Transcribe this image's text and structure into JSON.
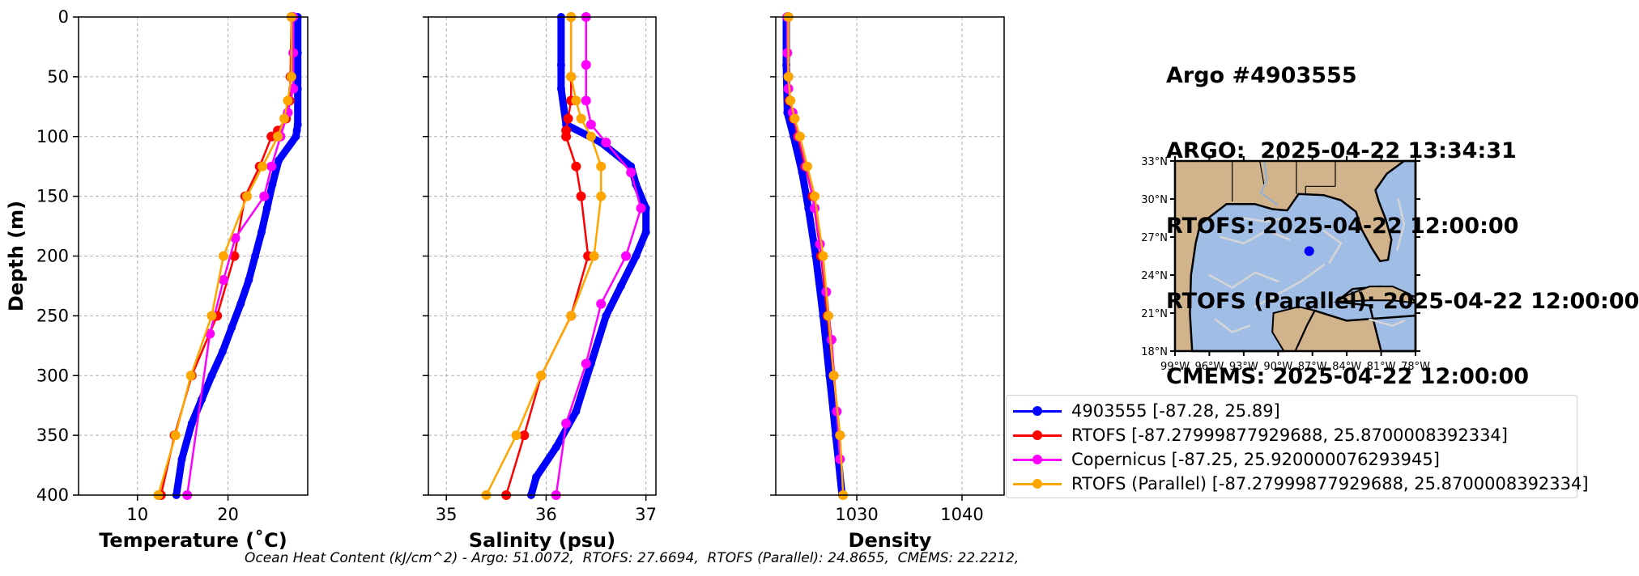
{
  "title": {
    "line1": "Argo #4903555",
    "line2": "ARGO:  2025-04-22 13:34:31",
    "line3": "RTOFS: 2025-04-22 12:00:00",
    "line4": "RTOFS (Parallel): 2025-04-22 12:00:00",
    "line5": "CMEMS: 2025-04-22 12:00:00"
  },
  "footer": "Ocean Heat Content (kJ/cm^2) - Argo: 51.0072,  RTOFS: 27.6694,  RTOFS (Parallel): 24.8655,  CMEMS: 22.2212,",
  "colors": {
    "argo": "#0000ff",
    "rtofs": "#ff0000",
    "copernicus": "#ff00ff",
    "rtofs_parallel": "#ffa500"
  },
  "legend": [
    {
      "label": "4903555 [-87.28, 25.89]",
      "color": "#0000ff"
    },
    {
      "label": "RTOFS [-87.27999877929688, 25.8700008392334]",
      "color": "#ff0000"
    },
    {
      "label": "Copernicus [-87.25, 25.920000076293945]",
      "color": "#ff00ff"
    },
    {
      "label": "RTOFS (Parallel) [-87.27999877929688, 25.8700008392334]",
      "color": "#ffa500"
    }
  ],
  "chart_data": [
    {
      "type": "line",
      "ylabel": "Depth (m)",
      "xlabel": "Temperature (˚C)",
      "xlim": [
        3.5,
        28.8
      ],
      "ylim": [
        400,
        0
      ],
      "grid": true,
      "xticks": [
        10,
        20
      ],
      "yticks": [
        0,
        50,
        100,
        150,
        200,
        250,
        300,
        350,
        400
      ],
      "series": [
        {
          "name": "4903555",
          "color": "#0000ff",
          "thick": true,
          "x": [
            27.7,
            27.7,
            27.7,
            27.7,
            27.6,
            27.5,
            25.6,
            24.9,
            24.3,
            23.7,
            23.0,
            22.3,
            21.4,
            20.4,
            19.4,
            18.2,
            17.1,
            16.0,
            14.9,
            14.3
          ],
          "y": [
            0,
            30,
            60,
            90,
            95,
            100,
            120,
            140,
            160,
            180,
            200,
            220,
            240,
            260,
            280,
            300,
            320,
            340,
            370,
            400
          ]
        },
        {
          "name": "RTOFS",
          "color": "#ff0000",
          "x": [
            27.0,
            26.9,
            26.8,
            26.4,
            25.5,
            24.8,
            23.5,
            21.9,
            20.7,
            18.8,
            16.0,
            14.1,
            12.6
          ],
          "y": [
            0,
            50,
            70,
            85,
            95,
            100,
            125,
            150,
            200,
            250,
            300,
            350,
            400
          ]
        },
        {
          "name": "Copernicus",
          "color": "#ff00ff",
          "x": [
            27.2,
            27.2,
            27.2,
            26.6,
            25.8,
            24.8,
            24.0,
            20.8,
            19.5,
            18.0,
            15.5
          ],
          "y": [
            0,
            30,
            60,
            80,
            100,
            125,
            150,
            185,
            220,
            265,
            400
          ]
        },
        {
          "name": "RTOFS (Parallel)",
          "color": "#ffa500",
          "x": [
            27.0,
            27.0,
            26.6,
            26.2,
            25.5,
            23.8,
            22.1,
            19.5,
            18.2,
            15.9,
            14.2,
            12.3
          ],
          "y": [
            0,
            50,
            70,
            85,
            100,
            125,
            150,
            200,
            250,
            300,
            350,
            400
          ]
        }
      ]
    },
    {
      "type": "line",
      "xlabel": "Salinity (psu)",
      "xlim": [
        34.82,
        37.1
      ],
      "ylim": [
        400,
        0
      ],
      "grid": true,
      "xticks": [
        35,
        36,
        37
      ],
      "yticks": [
        0,
        50,
        100,
        150,
        200,
        250,
        300,
        350,
        400
      ],
      "series": [
        {
          "name": "4903555",
          "color": "#0000ff",
          "thick": true,
          "x": [
            36.15,
            36.15,
            36.15,
            36.2,
            36.55,
            36.85,
            36.9,
            37.0,
            37.0,
            36.9,
            36.75,
            36.6,
            36.45,
            36.3,
            36.1,
            35.9,
            35.85
          ],
          "y": [
            0,
            40,
            60,
            90,
            105,
            125,
            140,
            160,
            180,
            200,
            225,
            250,
            290,
            330,
            360,
            385,
            400
          ]
        },
        {
          "name": "RTOFS",
          "color": "#ff0000",
          "x": [
            36.25,
            36.25,
            36.25,
            36.22,
            36.2,
            36.2,
            36.3,
            36.35,
            36.42,
            36.25,
            35.95,
            35.78,
            35.6
          ],
          "y": [
            0,
            50,
            70,
            85,
            95,
            100,
            125,
            150,
            200,
            250,
            300,
            350,
            400
          ]
        },
        {
          "name": "Copernicus",
          "color": "#ff00ff",
          "x": [
            36.4,
            36.4,
            36.4,
            36.45,
            36.6,
            36.85,
            36.95,
            36.8,
            36.55,
            36.4,
            36.2,
            36.1
          ],
          "y": [
            0,
            40,
            70,
            90,
            105,
            130,
            160,
            200,
            240,
            290,
            340,
            400
          ]
        },
        {
          "name": "RTOFS (Parallel)",
          "color": "#ffa500",
          "x": [
            36.25,
            36.25,
            36.3,
            36.35,
            36.45,
            36.55,
            36.55,
            36.48,
            36.25,
            35.95,
            35.7,
            35.4
          ],
          "y": [
            0,
            50,
            70,
            85,
            100,
            125,
            150,
            200,
            250,
            300,
            350,
            400
          ]
        }
      ]
    },
    {
      "type": "line",
      "xlabel": "Density",
      "xlim": [
        1022.3,
        1044.0
      ],
      "ylim": [
        400,
        0
      ],
      "grid": true,
      "xticks": [
        1030,
        1040
      ],
      "yticks": [
        0,
        50,
        100,
        150,
        200,
        250,
        300,
        350,
        400
      ],
      "series": [
        {
          "name": "4903555",
          "color": "#0000ff",
          "thick": true,
          "x": [
            1023.3,
            1023.3,
            1023.4,
            1024.0,
            1024.8,
            1025.4,
            1026.1,
            1026.8,
            1027.4,
            1028.0,
            1028.6
          ],
          "y": [
            0,
            40,
            80,
            100,
            130,
            160,
            200,
            250,
            300,
            350,
            400
          ]
        },
        {
          "name": "RTOFS",
          "color": "#ff0000",
          "x": [
            1023.5,
            1023.5,
            1023.6,
            1024.0,
            1024.4,
            1025.1,
            1025.8,
            1026.6,
            1027.2,
            1027.8,
            1028.4
          ],
          "y": [
            0,
            50,
            70,
            85,
            100,
            125,
            150,
            200,
            250,
            300,
            350
          ]
        },
        {
          "name": "Copernicus",
          "color": "#ff00ff",
          "x": [
            1023.4,
            1023.4,
            1023.5,
            1023.9,
            1024.5,
            1025.2,
            1026.0,
            1026.5,
            1027.1,
            1027.6,
            1028.1,
            1028.4
          ],
          "y": [
            0,
            30,
            60,
            80,
            100,
            125,
            160,
            190,
            230,
            270,
            330,
            370
          ]
        },
        {
          "name": "RTOFS (Parallel)",
          "color": "#ffa500",
          "x": [
            1023.5,
            1023.5,
            1023.7,
            1024.1,
            1024.6,
            1025.3,
            1026.0,
            1026.8,
            1027.3,
            1027.8,
            1028.4,
            1028.7
          ],
          "y": [
            0,
            50,
            70,
            85,
            100,
            125,
            150,
            200,
            250,
            300,
            350,
            400
          ]
        }
      ]
    }
  ],
  "map": {
    "lat_labels": [
      "33°N",
      "30°N",
      "27°N",
      "24°N",
      "21°N",
      "18°N"
    ],
    "lon_labels": [
      "99°W",
      "96°W",
      "93°W",
      "90°W",
      "87°W",
      "84°W",
      "81°W",
      "78°W"
    ],
    "land_color": "#d2b48c",
    "water_color": "#a0bde6",
    "marker": {
      "lon": -87.28,
      "lat": 25.89,
      "color": "#0000ff"
    }
  }
}
